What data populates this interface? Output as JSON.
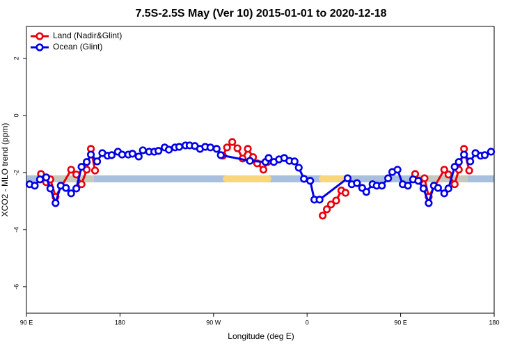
{
  "chart_data": {
    "type": "line",
    "title": "7.5S-2.5S May (Ver 10)   2015-01-01 to 2020-12-18",
    "x_label": "Longitude (deg E)",
    "y_label": "XCO2 - MLO trend (ppm)",
    "xlim": [
      90,
      540
    ],
    "ylim": [
      -6.93,
      3.12
    ],
    "xticks": [
      {
        "value": 90,
        "label": "90 E"
      },
      180,
      {
        "value": 270,
        "label": "90 W"
      },
      {
        "value": 360,
        "label": "0"
      },
      {
        "value": 450,
        "label": "90 E"
      },
      {
        "value": 540,
        "label": "180"
      }
    ],
    "yticks": [
      2,
      0,
      -2,
      -4,
      -6
    ],
    "legend": "top-left",
    "series": [
      {
        "name": "Land (Nadir&Glint)",
        "color": "#e8000b",
        "x": [
          104,
          109,
          113,
          118,
          133,
          138,
          143,
          148,
          152,
          156,
          null,
          279,
          283,
          288,
          293,
          298,
          303,
          308,
          312,
          318,
          322,
          null,
          375,
          379,
          383,
          388,
          393,
          397,
          null,
          464,
          468,
          473,
          477,
          492,
          496,
          502,
          506,
          511,
          516
        ],
        "values": [
          -2.05,
          -2.34,
          -2.24,
          -2.85,
          -1.9,
          -2.07,
          -2.41,
          -1.9,
          -1.17,
          -1.93,
          null,
          -1.41,
          -1.12,
          -0.93,
          -1.15,
          -1.51,
          -1.17,
          -1.46,
          -1.68,
          -1.9,
          -1.63,
          null,
          -3.51,
          -3.29,
          -3.12,
          -2.98,
          -2.63,
          -2.71,
          null,
          -2.05,
          -2.29,
          -2.2,
          -2.85,
          -1.9,
          -2.07,
          -2.41,
          -1.9,
          -1.17,
          -1.93
        ]
      },
      {
        "name": "Ocean (Glint)",
        "color": "#0000e6",
        "x": [
          93,
          98,
          103,
          109,
          113,
          118,
          123,
          128,
          133,
          138,
          143,
          148,
          152,
          158,
          163,
          168,
          172,
          178,
          182,
          188,
          192,
          198,
          202,
          208,
          213,
          217,
          223,
          227,
          233,
          237,
          243,
          247,
          252,
          257,
          262,
          267,
          273,
          277,
          305,
          320,
          323,
          328,
          333,
          338,
          343,
          348,
          352,
          357,
          363,
          367,
          372,
          399,
          403,
          408,
          413,
          417,
          423,
          427,
          432,
          438,
          442,
          447,
          452,
          457,
          462,
          467,
          472,
          477,
          482,
          486,
          492,
          496,
          502,
          506,
          511,
          517,
          522,
          527,
          531,
          537
        ],
        "values": [
          -2.41,
          -2.46,
          -2.24,
          -2.17,
          -2.56,
          -3.07,
          -2.46,
          -2.54,
          -2.73,
          -2.56,
          -1.8,
          -1.63,
          -1.37,
          -1.61,
          -1.32,
          -1.41,
          -1.39,
          -1.27,
          -1.37,
          -1.37,
          -1.34,
          -1.44,
          -1.22,
          -1.27,
          -1.27,
          -1.24,
          -1.12,
          -1.2,
          -1.12,
          -1.1,
          -1.05,
          -1.05,
          -1.07,
          -1.17,
          -1.1,
          -1.12,
          -1.17,
          -1.39,
          -1.59,
          -1.63,
          -1.49,
          -1.63,
          -1.54,
          -1.49,
          -1.59,
          -1.61,
          -1.83,
          -2.22,
          -2.29,
          -2.95,
          -2.95,
          -2.2,
          -2.41,
          -2.37,
          -2.54,
          -2.68,
          -2.41,
          -2.46,
          -2.46,
          -2.2,
          -1.98,
          -1.9,
          -2.41,
          -2.46,
          -2.24,
          -2.29,
          -2.56,
          -3.07,
          -2.46,
          -2.54,
          -2.73,
          -2.56,
          -1.8,
          -1.63,
          -1.37,
          -1.61,
          -1.32,
          -1.41,
          -1.39,
          -1.27
        ]
      }
    ]
  }
}
